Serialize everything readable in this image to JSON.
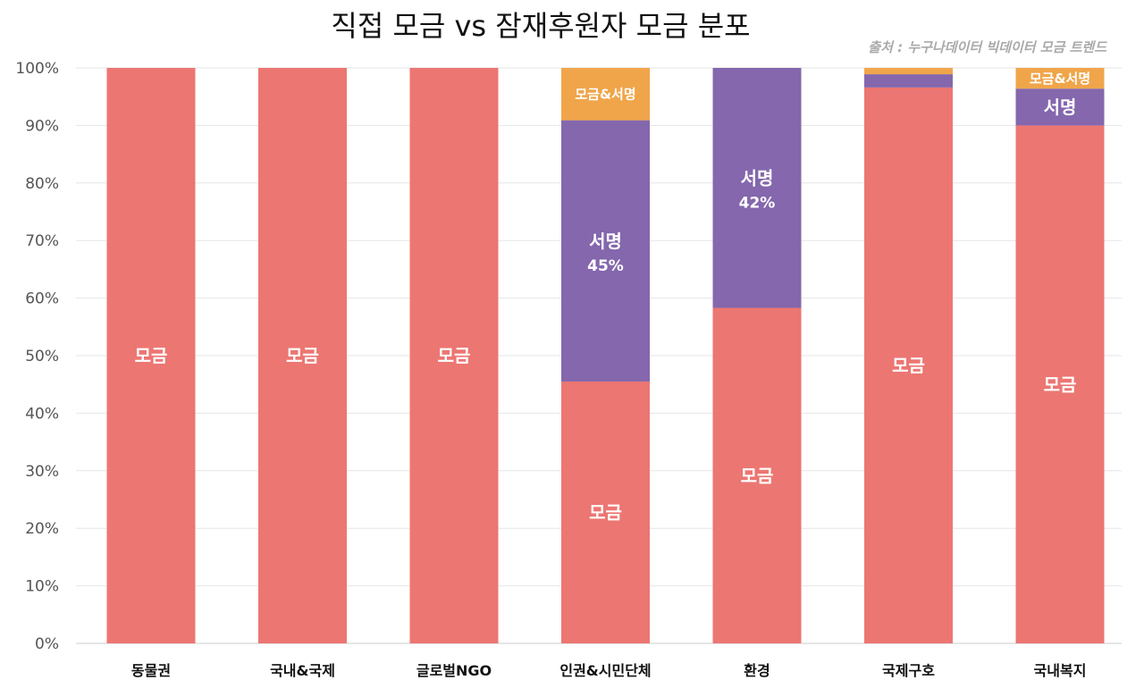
{
  "chart_data": {
    "type": "bar",
    "stacked": true,
    "title": "직접 모금 vs 잠재후원자 모금 분포",
    "source": "출처 : 누구나데이터 빅데이터 모금 트렌드",
    "ylim": [
      0,
      100
    ],
    "yticks": [
      "0%",
      "10%",
      "20%",
      "30%",
      "40%",
      "50%",
      "60%",
      "70%",
      "80%",
      "90%",
      "100%"
    ],
    "grid": true,
    "categories": [
      "동물권",
      "국내&국제",
      "글로벌NGO",
      "인권&시민단체",
      "환경",
      "국제구호",
      "국내복지"
    ],
    "series": [
      {
        "name": "모금",
        "color": "#ec7672",
        "values": [
          100,
          100,
          100,
          45.5,
          58.3,
          96.6,
          90.0
        ],
        "labels": [
          "모금",
          "모금",
          "모금",
          "모금",
          "모금",
          "모금",
          "모금"
        ],
        "label_values": [
          "",
          "",
          "",
          "",
          "",
          "",
          ""
        ]
      },
      {
        "name": "서명",
        "color": "#8467ad",
        "values": [
          0,
          0,
          0,
          45.4,
          41.7,
          2.3,
          6.4
        ],
        "labels": [
          "",
          "",
          "",
          "서명",
          "서명",
          "",
          "서명"
        ],
        "label_values": [
          "",
          "",
          "",
          "45%",
          "42%",
          "",
          ""
        ]
      },
      {
        "name": "모금&서명",
        "color": "#f0a54a",
        "values": [
          0,
          0,
          0,
          9.1,
          0,
          1.1,
          3.6
        ],
        "labels": [
          "",
          "",
          "",
          "모금&서명",
          "",
          "",
          "모금&서명"
        ],
        "label_values": [
          "",
          "",
          "",
          "",
          "",
          "",
          ""
        ]
      }
    ]
  }
}
